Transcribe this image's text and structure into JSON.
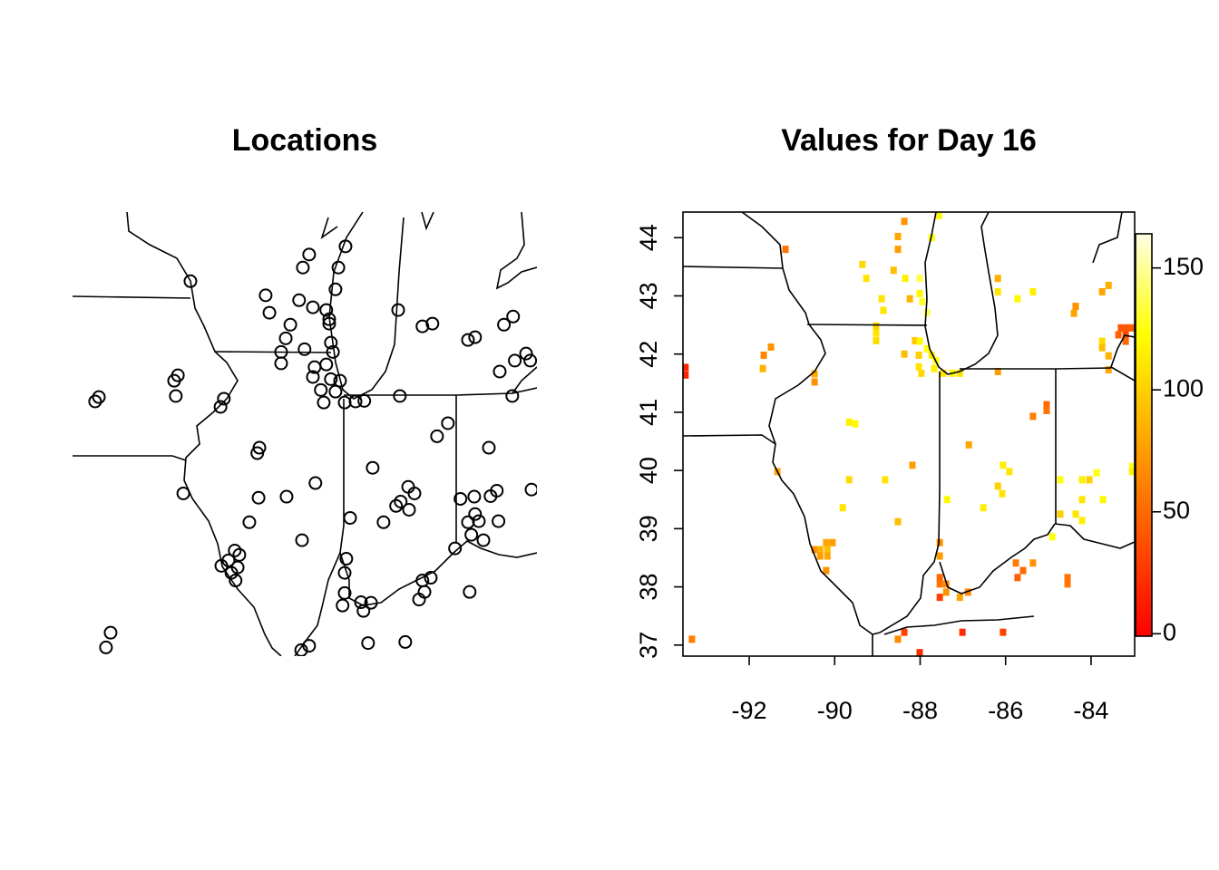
{
  "chart_data": [
    {
      "type": "scatter",
      "title": "Locations",
      "xlim": [
        -94.02,
        -82.91
      ],
      "ylim": [
        36.92,
        45.08
      ],
      "marker_color": "#000000",
      "x": [
        -91.2,
        -88.36,
        -88.51,
        -87.49,
        -87.66,
        -89.4,
        -87.73,
        -89.31,
        -88.6,
        -88.27,
        -87.95,
        -87.88,
        -88.81,
        -88.92,
        -87.84,
        -87.79,
        -89.03,
        -89.03,
        -88.47,
        -87.95,
        -88.23,
        -88.27,
        -87.84,
        -87.62,
        -88.08,
        -88.01,
        -87.73,
        -87.51,
        -87.25,
        -87.04,
        -86.19,
        -86.23,
        -85.65,
        -85.41,
        -83.7,
        -83.48,
        -84.56,
        -84.39,
        -83.8,
        -83.44,
        -83.17,
        -83.07,
        -83.5,
        -91.59,
        -91.5,
        -91.55,
        -93.48,
        -93.39,
        -90.4,
        -90.48,
        -89.55,
        -89.6,
        -84.06,
        -85.3,
        -85.04,
        -86.84,
        -88.21,
        -89.57,
        -88.9,
        -91.37,
        -85.99,
        -85.84,
        -86.17,
        -86.28,
        -85.97,
        -84.74,
        -84.41,
        -84.02,
        -83.87,
        -83.04,
        -84.39,
        -84.56,
        -84.3,
        -83.83,
        -84.48,
        -84.19,
        -84.87,
        -87.38,
        -86.58,
        -88.53,
        -89.79,
        -87.47,
        -87.51,
        -90.14,
        -90.03,
        -90.29,
        -90.07,
        -90.46,
        -90.22,
        -90.12,
        -85.45,
        -85.65,
        -85.6,
        -85.73,
        -84.52,
        -87.51,
        -87.56,
        -87.12,
        -86.88,
        -87.06,
        -93.11,
        -93.22,
        -86.95,
        -86.06,
        -88.36,
        -88.55,
        -87.88
      ],
      "y": [
        43.81,
        44.3,
        44.06,
        44.45,
        44.06,
        43.55,
        43.66,
        43.23,
        43.46,
        43.33,
        43.28,
        43.11,
        43.01,
        42.76,
        42.68,
        42.51,
        42.51,
        42.3,
        42.56,
        42.28,
        42.23,
        42.05,
        42.01,
        41.98,
        41.81,
        41.58,
        41.78,
        41.58,
        41.6,
        41.61,
        41.7,
        43.28,
        42.98,
        43.03,
        43.01,
        43.16,
        42.73,
        42.78,
        42.15,
        42.35,
        42.48,
        42.35,
        41.7,
        41.98,
        42.08,
        41.7,
        41.6,
        41.68,
        41.65,
        41.5,
        40.75,
        40.65,
        40.75,
        40.96,
        41.2,
        40.38,
        40.1,
        39.83,
        39.85,
        39.91,
        40.03,
        39.91,
        39.76,
        39.68,
        39.61,
        39.81,
        39.85,
        39.86,
        39.96,
        39.98,
        39.53,
        39.38,
        39.4,
        39.4,
        39.15,
        39.05,
        38.9,
        39.46,
        39.38,
        39.05,
        39.38,
        38.71,
        38.45,
        38.86,
        38.78,
        38.68,
        38.55,
        38.58,
        38.45,
        38.31,
        38.36,
        38.31,
        38.1,
        37.96,
        38.1,
        38.08,
        37.85,
        37.91,
        37.9,
        37.75,
        37.35,
        37.08,
        37.16,
        37.18,
        37.11,
        37.03,
        43.03
      ]
    },
    {
      "type": "heatmap",
      "title": "Values for Day 16",
      "xlim": [
        -93.55,
        -82.98
      ],
      "ylim": [
        36.81,
        44.44
      ],
      "xticks": [
        -92,
        -90,
        -88,
        -86,
        -84
      ],
      "yticks": [
        37,
        38,
        39,
        40,
        41,
        42,
        43,
        44
      ],
      "zlim": [
        -1,
        164
      ],
      "zticks": [
        0,
        50,
        100,
        150
      ],
      "colormap": "heat",
      "x": [
        -93.49,
        -93.49,
        -91.15,
        -88.37,
        -88.52,
        -88.52,
        -89.35,
        -89.26,
        -88.62,
        -88.35,
        -88.01,
        -87.56,
        -87.73,
        -88.9,
        -88.24,
        -88.01,
        -87.95,
        -87.84,
        -88.86,
        -89.03,
        -89.03,
        -89.03,
        -88.12,
        -88.01,
        -87.84,
        -87.73,
        -88.37,
        -88.03,
        -88.03,
        -87.97,
        -87.67,
        -87.46,
        -87.63,
        -87.24,
        -87.07,
        -86.18,
        -86.18,
        -85.72,
        -85.36,
        -84.4,
        -84.36,
        -83.74,
        -83.59,
        -83.15,
        -83.3,
        -83.04,
        -83.19,
        -83.36,
        -83.19,
        -83.74,
        -83.74,
        -83.59,
        -83.59,
        -91.49,
        -91.66,
        -91.68,
        -90.47,
        -90.47,
        -89.66,
        -89.52,
        -86.86,
        -86.18,
        -85.04,
        -85.04,
        -85.36,
        -88.18,
        -88.82,
        -89.66,
        -91.34,
        -86.06,
        -85.91,
        -86.18,
        -86.08,
        -86.52,
        -87.37,
        -84.72,
        -84.21,
        -84.04,
        -83.87,
        -83.04,
        -83.04,
        -84.21,
        -83.72,
        -84.72,
        -84.36,
        -84.21,
        -89.81,
        -88.52,
        -84.91,
        -90.2,
        -90.05,
        -90.47,
        -90.34,
        -90.17,
        -90.34,
        -90.17,
        -90.2,
        -87.54,
        -87.54,
        -87.54,
        -87.54,
        -87.39,
        -87.39,
        -87.07,
        -86.88,
        -87.54,
        -85.76,
        -85.59,
        -85.36,
        -85.72,
        -84.55,
        -84.55,
        -88.37,
        -88.52,
        -87.01,
        -86.06,
        -88.01,
        -93.34
      ],
      "y": [
        41.77,
        41.64,
        43.8,
        44.28,
        44.02,
        43.8,
        43.54,
        43.3,
        43.44,
        43.3,
        43.3,
        44.38,
        44.0,
        42.95,
        42.95,
        43.04,
        42.9,
        42.71,
        42.75,
        42.48,
        42.36,
        42.23,
        42.23,
        42.22,
        42.09,
        41.98,
        42.0,
        41.98,
        41.78,
        41.67,
        41.75,
        41.67,
        41.89,
        41.67,
        41.67,
        43.3,
        43.07,
        42.95,
        43.07,
        42.7,
        42.82,
        43.07,
        43.18,
        42.45,
        42.45,
        42.45,
        42.33,
        42.33,
        42.22,
        42.22,
        42.11,
        41.97,
        41.73,
        42.12,
        41.98,
        41.75,
        41.66,
        41.52,
        40.83,
        40.8,
        40.44,
        41.7,
        41.13,
        41.03,
        40.93,
        40.09,
        39.84,
        39.84,
        39.98,
        40.09,
        39.98,
        39.73,
        39.6,
        39.36,
        39.5,
        39.84,
        39.84,
        39.84,
        39.96,
        40.07,
        39.98,
        39.5,
        39.5,
        39.25,
        39.25,
        39.14,
        39.36,
        39.12,
        38.86,
        38.76,
        38.76,
        38.64,
        38.64,
        38.64,
        38.53,
        38.53,
        38.28,
        38.76,
        38.53,
        38.16,
        38.05,
        38.05,
        37.91,
        37.82,
        37.91,
        37.82,
        38.41,
        38.28,
        38.41,
        38.16,
        38.16,
        38.05,
        37.22,
        37.1,
        37.22,
        37.22,
        36.87,
        37.1
      ],
      "values": [
        15,
        15,
        55,
        70,
        80,
        75,
        105,
        110,
        90,
        115,
        135,
        120,
        125,
        110,
        85,
        120,
        130,
        140,
        110,
        100,
        110,
        105,
        95,
        120,
        125,
        115,
        90,
        100,
        110,
        105,
        115,
        110,
        125,
        120,
        110,
        85,
        110,
        120,
        115,
        80,
        70,
        80,
        85,
        40,
        40,
        45,
        35,
        45,
        50,
        105,
        90,
        85,
        80,
        70,
        65,
        85,
        80,
        70,
        115,
        120,
        80,
        75,
        50,
        55,
        60,
        75,
        110,
        105,
        80,
        115,
        110,
        100,
        110,
        115,
        120,
        125,
        115,
        100,
        125,
        130,
        115,
        110,
        120,
        100,
        110,
        115,
        110,
        90,
        125,
        80,
        75,
        70,
        85,
        90,
        75,
        80,
        70,
        70,
        75,
        50,
        55,
        65,
        70,
        80,
        65,
        30,
        60,
        50,
        70,
        45,
        55,
        55,
        30,
        65,
        20,
        30,
        20,
        60
      ]
    }
  ]
}
